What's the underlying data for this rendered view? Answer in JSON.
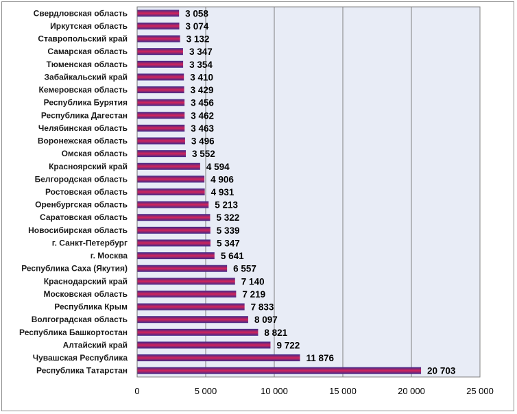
{
  "chart_data": {
    "type": "bar",
    "orientation": "horizontal",
    "categories": [
      "Свердловская область",
      "Иркутская область",
      "Ставропольский край",
      "Самарская область",
      "Тюменская область",
      "Забайкальский край",
      "Кемеровская область",
      "Республика Бурятия",
      "Республика Дагестан",
      "Челябинская область",
      "Воронежская область",
      "Омская область",
      "Красноярский край",
      "Белгородская область",
      "Ростовская область",
      "Оренбургская область",
      "Саратовская область",
      "Новосибирская область",
      "г. Санкт-Петербург",
      "г. Москва",
      "Республика Саха (Якутия)",
      "Краснодарский край",
      "Московская область",
      "Республика Крым",
      "Волгоградская область",
      "Республика Башкортостан",
      "Алтайский край",
      "Чувашская Республика",
      "Республика Татарстан"
    ],
    "values": [
      3058,
      3074,
      3132,
      3347,
      3354,
      3410,
      3429,
      3456,
      3462,
      3463,
      3496,
      3552,
      4594,
      4906,
      4931,
      5213,
      5322,
      5339,
      5347,
      5641,
      6557,
      7140,
      7219,
      7833,
      8097,
      8821,
      9722,
      11876,
      20703
    ],
    "value_labels": [
      "3 058",
      "3 074",
      "3 132",
      "3 347",
      "3 354",
      "3 410",
      "3 429",
      "3 456",
      "3 462",
      "3 463",
      "3 496",
      "3 552",
      "4 594",
      "4 906",
      "4 931",
      "5 213",
      "5 322",
      "5 339",
      "5 347",
      "5 641",
      "6 557",
      "7 140",
      "7 219",
      "7 833",
      "8 097",
      "8 821",
      "9 722",
      "11 876",
      "20 703"
    ],
    "xlim": [
      0,
      25000
    ],
    "x_ticks": [
      0,
      5000,
      10000,
      15000,
      20000,
      25000
    ],
    "x_tick_labels": [
      "0",
      "5 000",
      "10 000",
      "15 000",
      "20 000",
      "25 000"
    ],
    "grid": "vertical",
    "legend": "none",
    "title": "",
    "xlabel": "",
    "ylabel": "",
    "colors": {
      "plot_background": "#e8ecf6",
      "gridline": "#808080",
      "bar_top": "#3b2a8c",
      "bar_middle": "#d4245a",
      "bar_bottom": "#3b2a8c"
    }
  }
}
